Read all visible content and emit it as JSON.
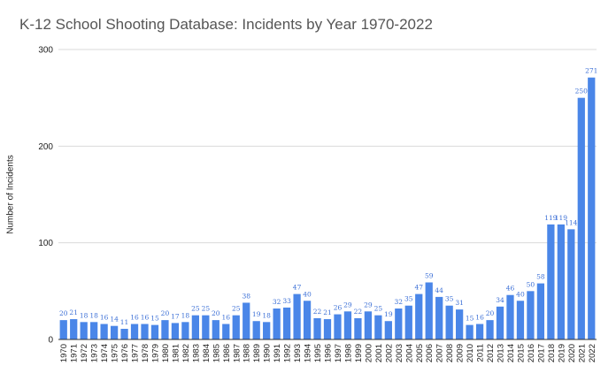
{
  "chart_data": {
    "type": "bar",
    "title": "K-12 School Shooting Database: Incidents by Year 1970-2022",
    "xlabel": "",
    "ylabel": "Number of Incidents",
    "ylim": [
      0,
      300
    ],
    "yticks": [
      0,
      100,
      200,
      300
    ],
    "grid": true,
    "legend": "none",
    "bar_color": "#4a86e8",
    "label_color": "#3b6fd6",
    "categories": [
      "1970",
      "1971",
      "1972",
      "1973",
      "1974",
      "1975",
      "1976",
      "1977",
      "1978",
      "1979",
      "1980",
      "1981",
      "1982",
      "1983",
      "1984",
      "1985",
      "1986",
      "1987",
      "1988",
      "1989",
      "1990",
      "1991",
      "1992",
      "1993",
      "1994",
      "1995",
      "1996",
      "1997",
      "1998",
      "1999",
      "2000",
      "2001",
      "2002",
      "2003",
      "2004",
      "2005",
      "2006",
      "2007",
      "2008",
      "2009",
      "2010",
      "2011",
      "2012",
      "2013",
      "2014",
      "2015",
      "2016",
      "2017",
      "2018",
      "2019",
      "2020",
      "2021",
      "2022"
    ],
    "values": [
      20,
      21,
      18,
      18,
      16,
      14,
      11,
      16,
      16,
      15,
      20,
      17,
      18,
      25,
      25,
      20,
      16,
      25,
      38,
      19,
      18,
      32,
      33,
      47,
      40,
      22,
      21,
      26,
      29,
      22,
      29,
      25,
      19,
      32,
      35,
      47,
      59,
      44,
      35,
      31,
      15,
      16,
      20,
      34,
      46,
      40,
      50,
      58,
      119,
      119,
      114,
      250,
      271
    ]
  }
}
